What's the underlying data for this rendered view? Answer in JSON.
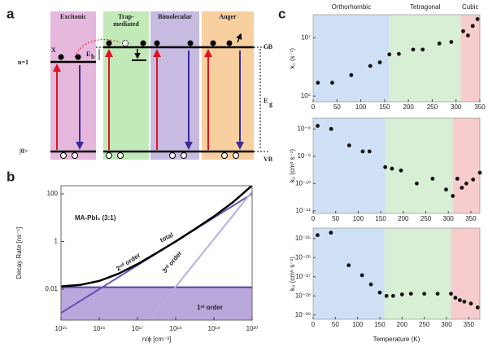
{
  "panel_a": {
    "label": "a",
    "columns": [
      {
        "title": [
          "Excitonic"
        ],
        "color": "#e6b8de"
      },
      {
        "title": [
          "Trap-",
          "mediated"
        ],
        "color": "#c2e9b8"
      },
      {
        "title": [
          "Bimolecular"
        ],
        "color": "#c7bbe2"
      },
      {
        "title": [
          "Auger"
        ],
        "color": "#f8d09f"
      }
    ],
    "n1": "n=1",
    "ground": "|0>",
    "exciton": "X",
    "eb_main": "E",
    "eb_sub": "b",
    "eg_main": "E",
    "eg_sub": "g",
    "cb": "CB",
    "vb": "VB"
  },
  "chart_data": [
    {
      "type": "line",
      "panel_label": "b",
      "title": "MA-PbI₃ (3:1)",
      "xlabel": "n/ϕ [cm⁻³]",
      "ylabel": "Decay Rate [ns⁻¹]",
      "log_x": true,
      "log_y": true,
      "xlim": [
        1000000000000000.0,
        1e+20
      ],
      "ylim": [
        0.0005,
        220
      ],
      "xticks": [
        {
          "value": 1000000000000000.0,
          "label": "10¹⁵"
        },
        {
          "value": 1e+16,
          "label": "10¹⁶"
        },
        {
          "value": 1e+17,
          "label": "10¹⁷"
        },
        {
          "value": 1e+18,
          "label": "10¹⁸"
        },
        {
          "value": 1e+19,
          "label": "10¹⁹"
        },
        {
          "value": 1e+20,
          "label": "10²⁰"
        }
      ],
      "yticks": [
        0.01,
        1,
        100
      ],
      "series": [
        {
          "name": "1ˢᵗ order",
          "color": "#5b3fa8",
          "fill": "#b9a8dc",
          "x": [
            1000000000000000.0,
            1e+20
          ],
          "values": [
            0.012,
            0.012
          ]
        },
        {
          "name": "2ⁿᵈ order",
          "color": "#6a50b5",
          "x": [
            1000000000000000.0,
            1e+16,
            1e+17,
            1e+18,
            1e+19,
            1e+20
          ],
          "values": [
            0.001,
            0.01,
            0.1,
            1,
            10,
            100
          ]
        },
        {
          "name": "3ʳᵈ order",
          "color": "#b7aee0",
          "x": [
            2e+17,
            1e+18,
            1e+19,
            1e+20
          ],
          "values": [
            0.0005,
            0.0126,
            1.26,
            126
          ]
        },
        {
          "name": "total",
          "color": "#000000",
          "x": [
            1000000000000000.0,
            3160000000000000.0,
            1e+16,
            3.16e+16,
            1e+17,
            3.16e+17,
            1e+18,
            3.16e+18,
            1e+19,
            3.16e+19,
            1e+20
          ],
          "values": [
            0.013,
            0.015,
            0.022,
            0.044,
            0.112,
            0.33,
            1.01,
            3.3,
            11.3,
            45,
            226
          ]
        }
      ]
    },
    {
      "type": "scatter",
      "panel_label": "c",
      "ylabel": "k₁ (s⁻¹)",
      "log_y": true,
      "xlim": [
        0,
        350
      ],
      "ylim": [
        800000,
        25000000
      ],
      "xticks": [
        0,
        50,
        100,
        150,
        200,
        250,
        300,
        350
      ],
      "yticks": [
        {
          "value": 1000000,
          "label": "10⁶"
        },
        {
          "value": 10000000,
          "label": "10⁷"
        }
      ],
      "regions": [
        {
          "name": "Orthorhombic",
          "xlim": [
            0,
            160
          ],
          "color": "#cfe0f6"
        },
        {
          "name": "Tetragonal",
          "xlim": [
            160,
            310
          ],
          "color": "#d8efd6"
        },
        {
          "name": "Cubic",
          "xlim": [
            310,
            350
          ],
          "color": "#f6cccc"
        }
      ],
      "x": [
        10,
        40,
        80,
        120,
        140,
        160,
        180,
        210,
        230,
        265,
        290,
        315,
        325,
        335,
        345
      ],
      "values": [
        1700000,
        1700000,
        2300000,
        3300000,
        3800000,
        5200000,
        5300000,
        6300000,
        6300000,
        8000000,
        8500000,
        13000000,
        11000000,
        16000000,
        21000000
      ]
    },
    {
      "type": "scatter",
      "ylabel": "k₂ (cm³ s⁻¹)",
      "log_y": true,
      "xlim": [
        0,
        370
      ],
      "ylim": [
        8e-12,
        2.5e-08
      ],
      "xticks": [
        0,
        50,
        100,
        150,
        200,
        250,
        300,
        350
      ],
      "yticks": [
        {
          "value": 1e-11,
          "label": "10⁻¹¹"
        },
        {
          "value": 1e-10,
          "label": "10⁻¹⁰"
        },
        {
          "value": 1e-09,
          "label": "10⁻⁹"
        },
        {
          "value": 1e-08,
          "label": "10⁻⁸"
        }
      ],
      "regions": [
        {
          "xlim": [
            0,
            160
          ],
          "color": "#cfe0f6"
        },
        {
          "xlim": [
            160,
            310
          ],
          "color": "#d8efd6"
        },
        {
          "xlim": [
            310,
            370
          ],
          "color": "#f6cccc"
        }
      ],
      "x": [
        10,
        40,
        80,
        110,
        125,
        160,
        175,
        195,
        230,
        265,
        295,
        310,
        320,
        330,
        340,
        355,
        370
      ],
      "values": [
        1.3e-08,
        1e-08,
        2.5e-09,
        1.5e-09,
        1.5e-09,
        4e-10,
        3.5e-10,
        3e-10,
        1e-10,
        1.5e-10,
        6e-11,
        3.5e-11,
        1.5e-10,
        7e-11,
        1e-10,
        1.4e-10,
        2.5e-10
      ]
    },
    {
      "type": "scatter",
      "ylabel": "k₃ (cm⁶ s⁻¹)",
      "xlabel": "Temperature (K)",
      "log_y": true,
      "xlim": [
        0,
        375
      ],
      "ylim": [
        6e-30,
        3.5e-25
      ],
      "xticks": [
        0,
        50,
        100,
        150,
        200,
        250,
        300,
        350
      ],
      "yticks": [
        {
          "value": 1e-29,
          "label": "10⁻²⁹"
        },
        {
          "value": 1e-28,
          "label": "10⁻²⁸"
        },
        {
          "value": 1e-27,
          "label": "10⁻²⁷"
        },
        {
          "value": 1e-26,
          "label": "10⁻²⁶"
        },
        {
          "value": 1e-25,
          "label": "10⁻²⁵"
        }
      ],
      "regions": [
        {
          "xlim": [
            0,
            160
          ],
          "color": "#cfe0f6"
        },
        {
          "xlim": [
            160,
            310
          ],
          "color": "#d8efd6"
        },
        {
          "xlim": [
            310,
            375
          ],
          "color": "#f6cccc"
        }
      ],
      "x": [
        10,
        40,
        80,
        110,
        130,
        150,
        165,
        180,
        200,
        220,
        250,
        280,
        310,
        320,
        330,
        340,
        355,
        370
      ],
      "values": [
        1.5e-25,
        2e-25,
        4e-27,
        1.2e-27,
        4e-28,
        1.5e-28,
        1e-28,
        1e-28,
        1.2e-28,
        1.3e-28,
        1.3e-28,
        1.3e-28,
        1.3e-28,
        8e-29,
        6e-29,
        5e-29,
        4e-29,
        2.5e-29
      ]
    }
  ]
}
